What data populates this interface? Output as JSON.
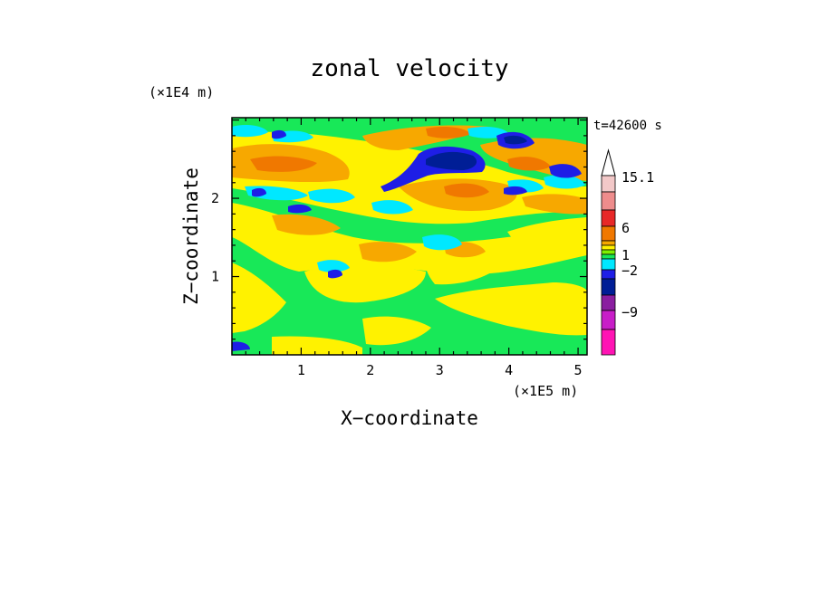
{
  "chart_data": {
    "type": "heatmap",
    "title": "zonal velocity",
    "xlabel": "X−coordinate",
    "ylabel": "Z−coordinate",
    "x_unit": "(×1E5 m)",
    "y_unit": "(×1E4 m)",
    "time_label": "t=42600 s",
    "xlim": [
      0,
      5.13
    ],
    "ylim": [
      0,
      3.03
    ],
    "x_ticks": [
      "1",
      "2",
      "3",
      "4",
      "5"
    ],
    "y_ticks": [
      "1",
      "2"
    ],
    "colorbar": {
      "tick_labels": [
        "15.1",
        "6",
        "1",
        "−2",
        "−9"
      ],
      "levels": [
        {
          "color": "#f2c8c8"
        },
        {
          "color": "#ee8c8c"
        },
        {
          "color": "#e82828"
        },
        {
          "color": "#f07800"
        },
        {
          "color": "#f7a800"
        },
        {
          "color": "#fff200"
        },
        {
          "color": "#7ef000"
        },
        {
          "color": "#18e858"
        },
        {
          "color": "#00e8ff"
        },
        {
          "color": "#1e1ee6"
        },
        {
          "color": "#001e96"
        },
        {
          "color": "#8a1ea0"
        },
        {
          "color": "#c81ec8"
        },
        {
          "color": "#ff14b4"
        }
      ]
    },
    "field_palette": {
      "green": "#18e858",
      "yellow": "#fff200",
      "orange": "#f7a800",
      "dark_orange": "#f07800",
      "cyan": "#00e8ff",
      "blue": "#1e1ee6",
      "navy": "#001e96"
    },
    "grid": false
  }
}
